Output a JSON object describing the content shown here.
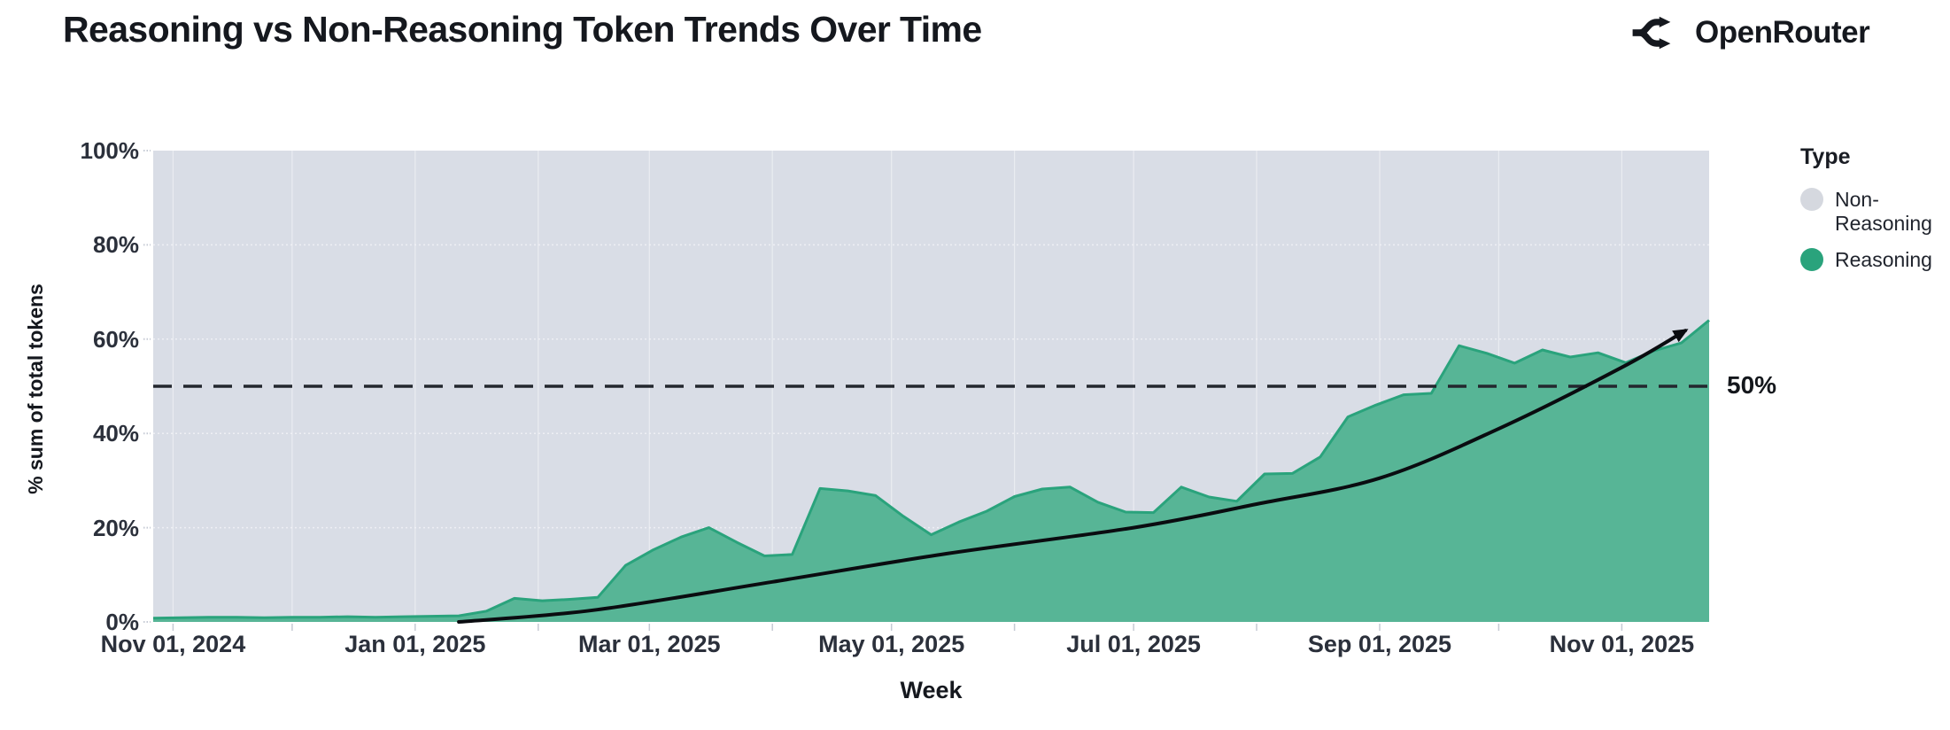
{
  "header": {
    "title": "Reasoning vs Non-Reasoning Token Trends Over Time",
    "brand": "OpenRouter"
  },
  "legend": {
    "title": "Type",
    "items": [
      {
        "label": "Non-Reasoning",
        "color": "#d5d8df"
      },
      {
        "label": "Reasoning",
        "color": "#2aa37c"
      }
    ]
  },
  "axes": {
    "x_label": "Week",
    "y_label": "% sum of total tokens",
    "y_ticks": [
      "0%",
      "20%",
      "40%",
      "60%",
      "80%",
      "100%"
    ]
  },
  "annotation": {
    "label": "50%"
  },
  "colors": {
    "plot_background": "#d9dde6",
    "area_fill": "#57b596",
    "area_stroke": "#2aa37c",
    "reference_dash": "#23272e",
    "trend_arrow": "#0a0c10",
    "gridline": "#f2f4f8",
    "tick_mark": "#c5cad4",
    "text_dark": "#15181e"
  },
  "chart_data": {
    "type": "area",
    "percent_stacked": true,
    "title": "Reasoning vs Non-Reasoning Token Trends Over Time",
    "xlabel": "Week",
    "ylabel": "% sum of total tokens",
    "ylim": [
      0,
      100
    ],
    "x_domain": [
      "2024-10-27",
      "2025-11-23"
    ],
    "x_ticks": [
      {
        "date": "2024-11-01",
        "label": "Nov 01, 2024"
      },
      {
        "date": "2025-01-01",
        "label": "Jan 01, 2025"
      },
      {
        "date": "2025-03-01",
        "label": "Mar 01, 2025"
      },
      {
        "date": "2025-05-01",
        "label": "May 01, 2025"
      },
      {
        "date": "2025-07-01",
        "label": "Jul 01, 2025"
      },
      {
        "date": "2025-09-01",
        "label": "Sep 01, 2025"
      },
      {
        "date": "2025-11-01",
        "label": "Nov 01, 2025"
      }
    ],
    "y_tick_values": [
      0,
      20,
      40,
      60,
      80,
      100
    ],
    "y_gridlines": [
      20,
      40,
      60,
      80
    ],
    "month_gridlines": [
      "2024-11-01",
      "2024-12-01",
      "2025-01-01",
      "2025-02-01",
      "2025-03-01",
      "2025-04-01",
      "2025-05-01",
      "2025-06-01",
      "2025-07-01",
      "2025-08-01",
      "2025-09-01",
      "2025-10-01",
      "2025-11-01"
    ],
    "weeks": [
      "2024-10-27",
      "2024-11-03",
      "2024-11-10",
      "2024-11-17",
      "2024-11-24",
      "2024-12-01",
      "2024-12-08",
      "2024-12-15",
      "2024-12-22",
      "2024-12-29",
      "2025-01-05",
      "2025-01-12",
      "2025-01-19",
      "2025-01-26",
      "2025-02-02",
      "2025-02-09",
      "2025-02-16",
      "2025-02-23",
      "2025-03-02",
      "2025-03-09",
      "2025-03-16",
      "2025-03-23",
      "2025-03-30",
      "2025-04-06",
      "2025-04-13",
      "2025-04-20",
      "2025-04-27",
      "2025-05-04",
      "2025-05-11",
      "2025-05-18",
      "2025-05-25",
      "2025-06-01",
      "2025-06-08",
      "2025-06-15",
      "2025-06-22",
      "2025-06-29",
      "2025-07-06",
      "2025-07-13",
      "2025-07-20",
      "2025-07-27",
      "2025-08-03",
      "2025-08-10",
      "2025-08-17",
      "2025-08-24",
      "2025-08-31",
      "2025-09-07",
      "2025-09-14",
      "2025-09-21",
      "2025-09-28",
      "2025-10-05",
      "2025-10-12",
      "2025-10-19",
      "2025-10-26",
      "2025-11-02",
      "2025-11-09",
      "2025-11-16",
      "2025-11-23"
    ],
    "series": [
      {
        "name": "Reasoning",
        "fill": "#57b596",
        "stroke": "#2aa37c",
        "values": [
          0.8,
          0.9,
          1.0,
          1.0,
          0.9,
          1.0,
          1.0,
          1.1,
          1.0,
          1.1,
          1.2,
          1.3,
          2.3,
          5.0,
          4.5,
          4.8,
          5.2,
          12.0,
          15.3,
          18.0,
          20.0,
          16.9,
          14.0,
          14.3,
          28.3,
          27.8,
          26.8,
          22.4,
          18.5,
          21.2,
          23.5,
          26.6,
          28.2,
          28.6,
          25.4,
          23.3,
          23.2,
          28.6,
          26.5,
          25.6,
          31.4,
          31.5,
          35.0,
          43.5,
          46.0,
          48.2,
          48.5,
          58.6,
          57.0,
          54.9,
          57.7,
          56.2,
          57.1,
          55.0,
          57.5,
          59.2,
          64.0
        ]
      },
      {
        "name": "Non-Reasoning",
        "fill": "#d9dde6",
        "values_are_remainder_to_100": true
      }
    ],
    "reference_line": {
      "value": 50,
      "label": "50%",
      "style": "dashed",
      "color": "#23272e"
    },
    "trend_arrow": {
      "color": "#0a0c10",
      "points": [
        [
          "2025-01-12",
          0
        ],
        [
          "2025-02-15",
          2.5
        ],
        [
          "2025-04-01",
          8.5
        ],
        [
          "2025-05-15",
          14.5
        ],
        [
          "2025-07-01",
          20
        ],
        [
          "2025-08-01",
          25
        ],
        [
          "2025-09-01",
          30.5
        ],
        [
          "2025-10-01",
          41
        ],
        [
          "2025-11-01",
          54
        ],
        [
          "2025-11-17",
          61.8
        ]
      ]
    }
  }
}
